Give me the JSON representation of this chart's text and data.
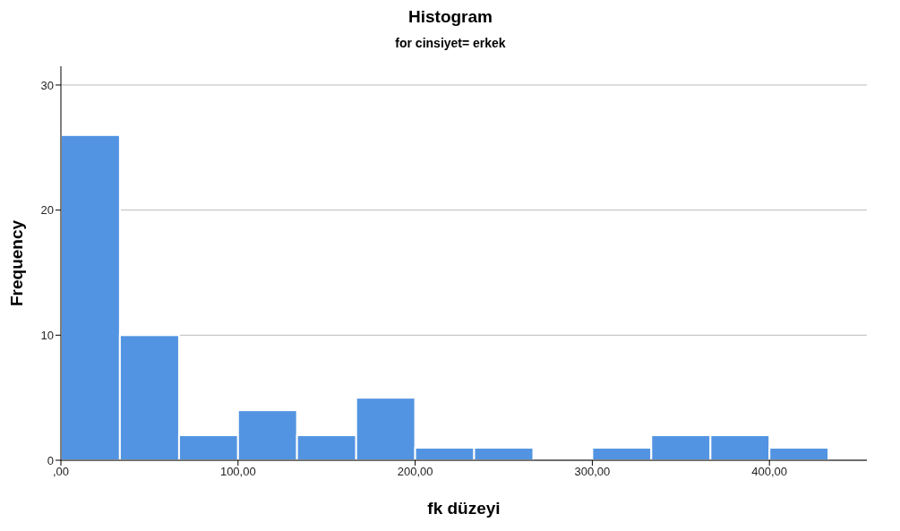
{
  "chart_data": {
    "type": "histogram",
    "title": "Histogram",
    "subtitle": "for cinsiyet= erkek",
    "xlabel": "fk düzeyi",
    "ylabel": "Frequency",
    "bins": [
      0,
      33.3,
      66.7,
      100,
      133.3,
      166.7,
      200,
      233.3,
      266.7,
      300,
      333.3,
      366.7,
      400,
      433.3
    ],
    "values": [
      26,
      10,
      2,
      4,
      2,
      5,
      1,
      1,
      0,
      1,
      2,
      2,
      1
    ],
    "color": "#5294e2",
    "xlim": [
      0,
      455
    ],
    "xticks": [
      {
        "value": 0,
        "label": ",00"
      },
      {
        "value": 100,
        "label": "100,00"
      },
      {
        "value": 200,
        "label": "200,00"
      },
      {
        "value": 300,
        "label": "300,00"
      },
      {
        "value": 400,
        "label": "400,00"
      }
    ],
    "ylim": [
      0,
      31.5
    ],
    "yticks": [
      0,
      10,
      20,
      30
    ],
    "grid": "y"
  }
}
